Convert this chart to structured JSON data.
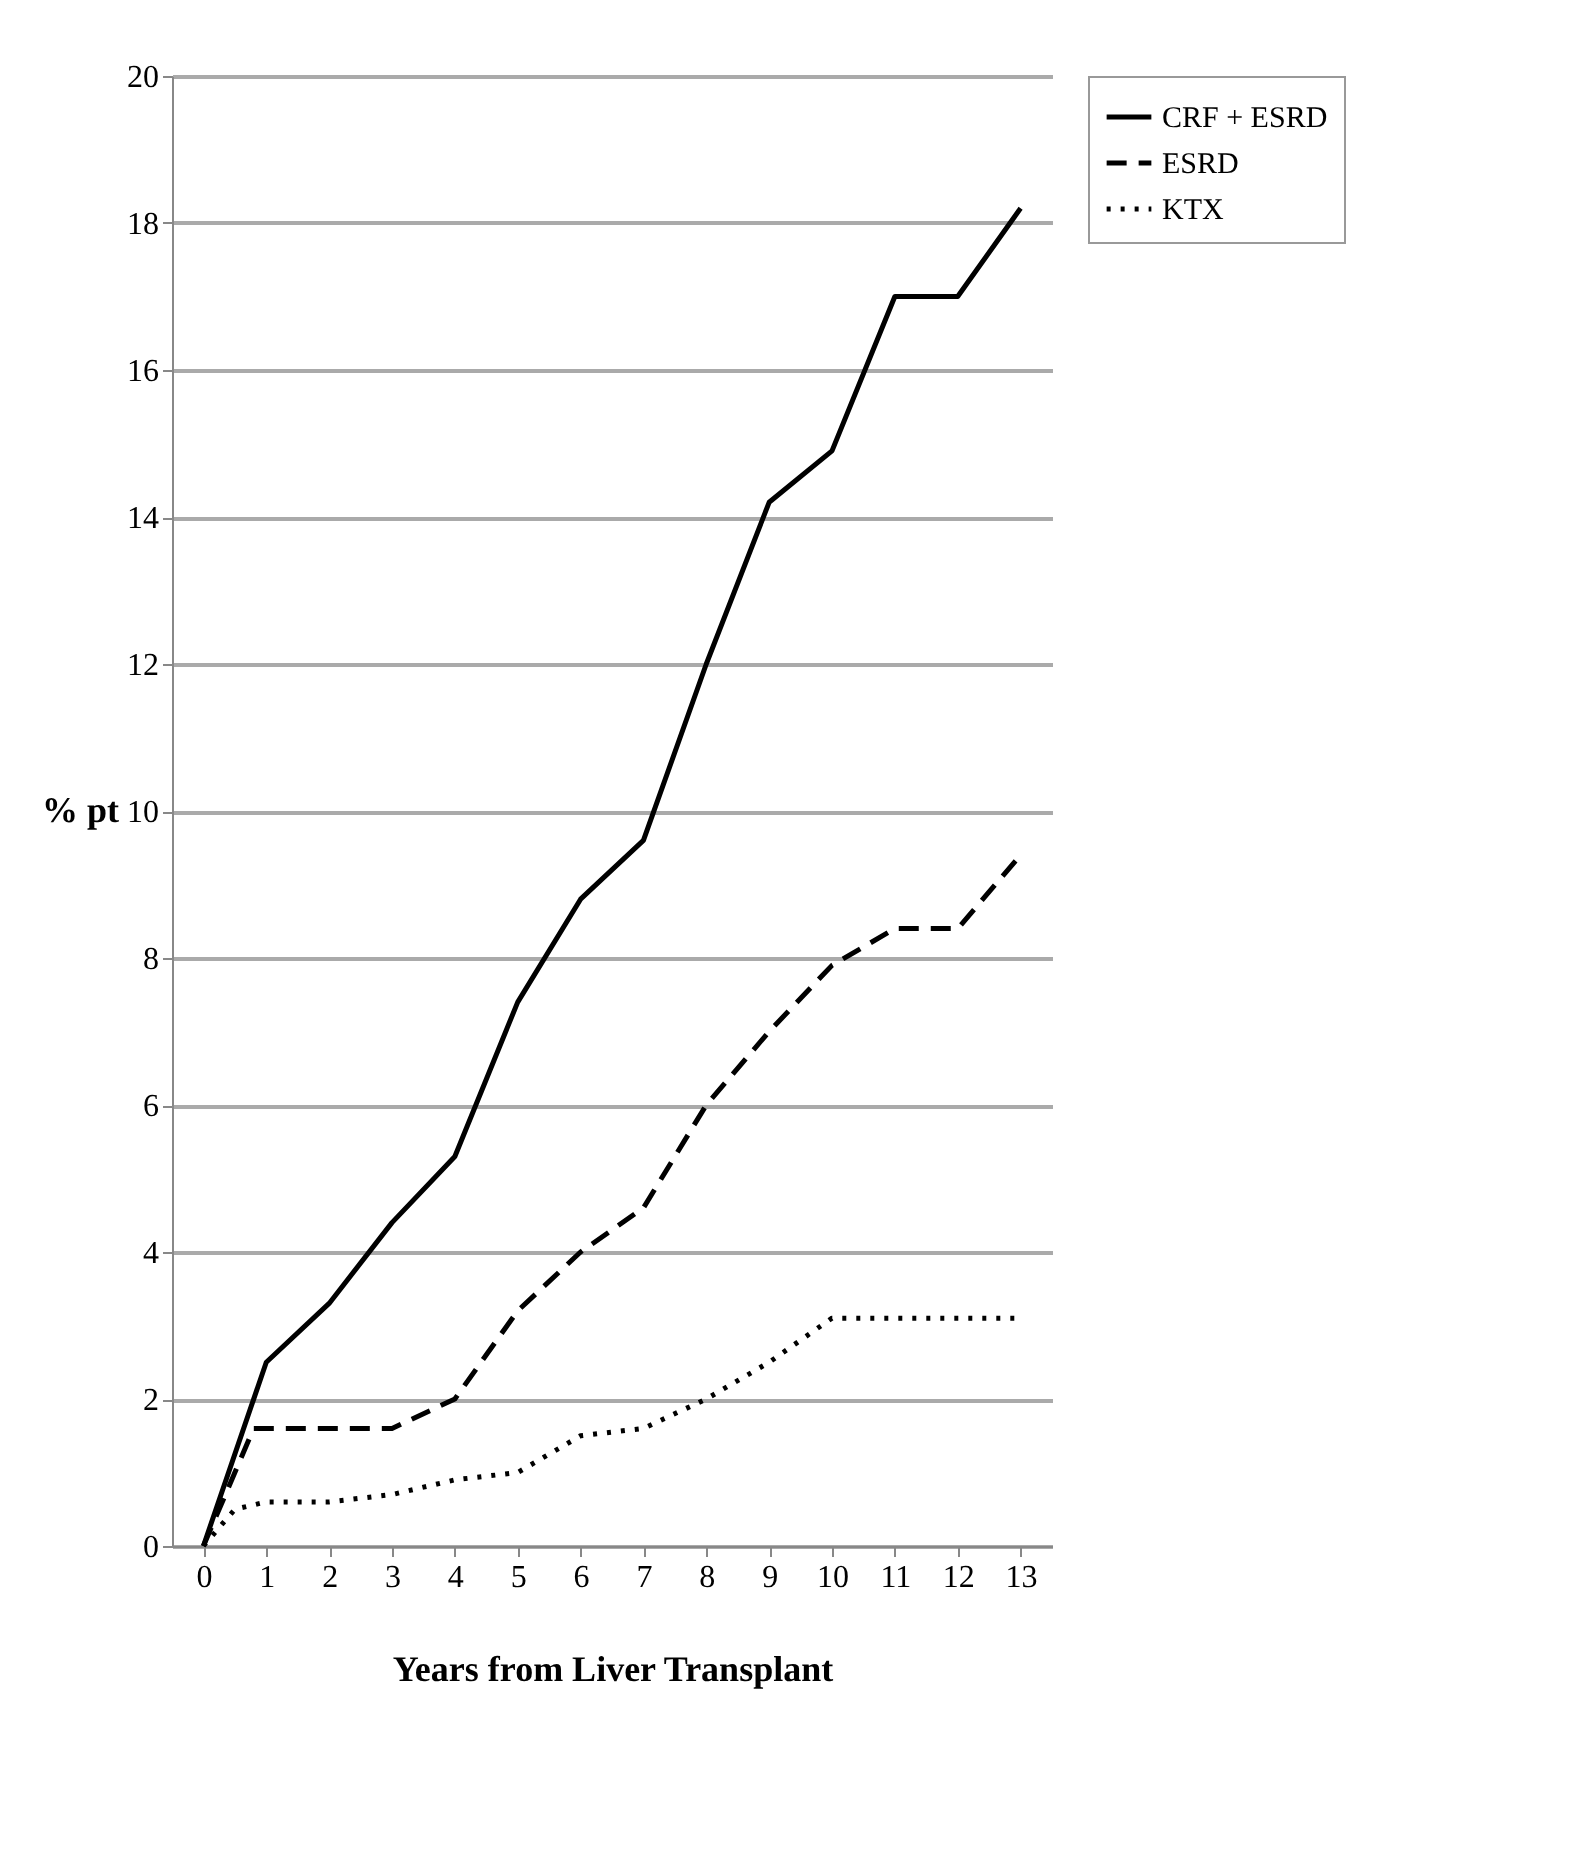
{
  "chart_data": {
    "type": "line",
    "xlabel": "Years from Liver Transplant",
    "ylabel": "% pt",
    "xlim": [
      -0.5,
      13.5
    ],
    "xticks": [
      0,
      1,
      2,
      3,
      4,
      5,
      6,
      7,
      8,
      9,
      10,
      11,
      12,
      13
    ],
    "ylim": [
      0,
      20
    ],
    "yticks": [
      0,
      2,
      4,
      6,
      8,
      10,
      12,
      14,
      16,
      18,
      20
    ],
    "grid": "y",
    "legend": "right",
    "marker": "none",
    "series": [
      {
        "name": "CRF + ESRD",
        "color": "#000000",
        "line_style": "solid",
        "x": [
          0,
          1,
          2,
          3,
          4,
          5,
          6,
          7,
          8,
          9,
          10,
          11,
          12,
          13
        ],
        "values": [
          0,
          2.5,
          3.3,
          4.4,
          5.3,
          7.4,
          8.8,
          9.6,
          12.0,
          14.2,
          14.9,
          17.0,
          17.0,
          18.2
        ]
      },
      {
        "name": "ESRD",
        "color": "#000000",
        "line_style": "dashed",
        "x": [
          0,
          0.8,
          1,
          2,
          3,
          4,
          5,
          6,
          7,
          8,
          9,
          10,
          11,
          12,
          13
        ],
        "values": [
          0,
          1.6,
          1.6,
          1.6,
          1.6,
          2.0,
          3.2,
          4.0,
          4.6,
          6.0,
          7.0,
          7.9,
          8.4,
          8.4,
          9.4
        ]
      },
      {
        "name": "KTX",
        "color": "#000000",
        "line_style": "dotted",
        "x": [
          0,
          0.5,
          1,
          2,
          3,
          4,
          5,
          6,
          7,
          8,
          9,
          10,
          11,
          12,
          13
        ],
        "values": [
          0,
          0.5,
          0.6,
          0.6,
          0.7,
          0.9,
          1.0,
          1.5,
          1.6,
          2.0,
          2.5,
          3.1,
          3.1,
          3.1,
          3.1
        ]
      }
    ]
  }
}
